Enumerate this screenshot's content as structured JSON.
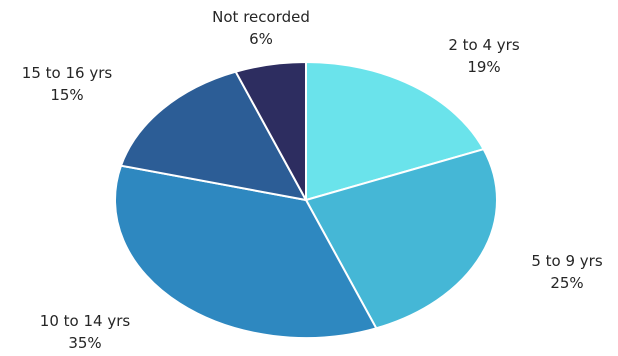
{
  "chart_data": {
    "type": "pie",
    "title": "",
    "start_angle_deg": 0,
    "direction": "clockwise",
    "slices": [
      {
        "label": "2 to 4 yrs",
        "value": 19,
        "display": "19%",
        "color": "#6ae3eb"
      },
      {
        "label": "5 to 9 yrs",
        "value": 25,
        "display": "25%",
        "color": "#45b7d6"
      },
      {
        "label": "10 to 14 yrs",
        "value": 35,
        "display": "35%",
        "color": "#2e88c0"
      },
      {
        "label": "15 to 16 yrs",
        "value": 15,
        "display": "15%",
        "color": "#2c5d96"
      },
      {
        "label": "Not recorded",
        "value": 6,
        "display": "6%",
        "color": "#2d2d60"
      }
    ]
  }
}
